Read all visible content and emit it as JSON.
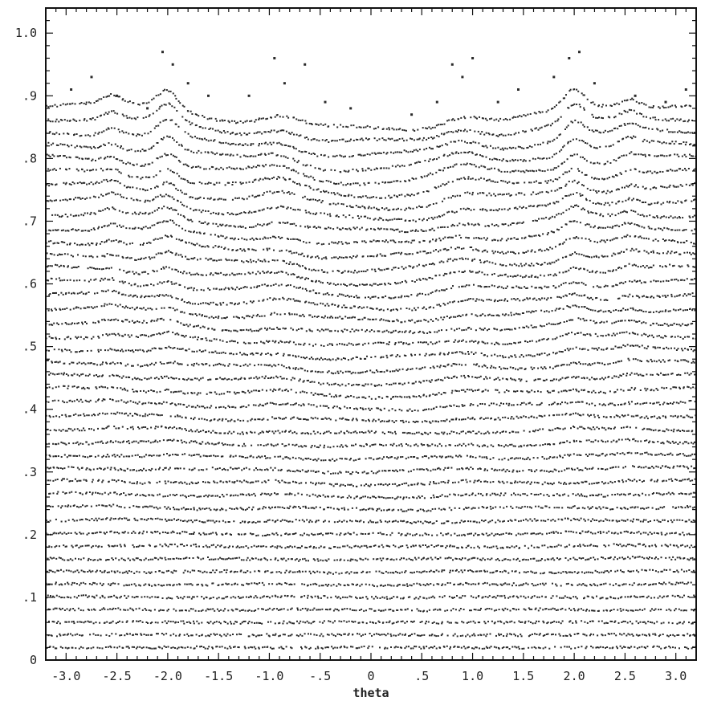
{
  "chart_data": {
    "type": "scatter",
    "title": "",
    "xlabel": "theta",
    "ylabel": "",
    "xlim": [
      -3.2,
      3.2
    ],
    "ylim": [
      0,
      1.04
    ],
    "grid": false,
    "legend": "none",
    "colors": {
      "points": "#2a2a2a",
      "frame": "#111111",
      "background": "#ffffff"
    },
    "x_ticks": [
      {
        "value": -3.0,
        "label": "-3.0"
      },
      {
        "value": -2.5,
        "label": "-2.5"
      },
      {
        "value": -2.0,
        "label": "-2.0"
      },
      {
        "value": -1.5,
        "label": "-1.5"
      },
      {
        "value": -1.0,
        "label": "-1.0"
      },
      {
        "value": -0.5,
        "label": "-.5"
      },
      {
        "value": 0.0,
        "label": "0"
      },
      {
        "value": 0.5,
        "label": ".5"
      },
      {
        "value": 1.0,
        "label": "1.0"
      },
      {
        "value": 1.5,
        "label": "1.5"
      },
      {
        "value": 2.0,
        "label": "2.0"
      },
      {
        "value": 2.5,
        "label": "2.5"
      },
      {
        "value": 3.0,
        "label": "3.0"
      }
    ],
    "y_ticks": [
      {
        "value": 0.0,
        "label": "0"
      },
      {
        "value": 0.1,
        "label": ".1"
      },
      {
        "value": 0.2,
        "label": ".2"
      },
      {
        "value": 0.3,
        "label": ".3"
      },
      {
        "value": 0.4,
        "label": ".4"
      },
      {
        "value": 0.5,
        "label": ".5"
      },
      {
        "value": 0.6,
        "label": ".6"
      },
      {
        "value": 0.7,
        "label": ".7"
      },
      {
        "value": 0.8,
        "label": ".8"
      },
      {
        "value": 0.9,
        "label": ".9"
      },
      {
        "value": 1.0,
        "label": "1.0"
      }
    ],
    "series": [
      {
        "description": "orbit band centers at theta = 0 (each band is a wavy curve sampled densely in theta)",
        "band_centers_y": [
          0.02,
          0.04,
          0.06,
          0.08,
          0.1,
          0.12,
          0.14,
          0.16,
          0.18,
          0.2,
          0.22,
          0.24,
          0.26,
          0.28,
          0.3,
          0.32,
          0.34,
          0.36,
          0.38,
          0.4,
          0.42,
          0.44,
          0.46,
          0.48,
          0.5,
          0.52,
          0.54,
          0.56,
          0.58,
          0.6,
          0.62,
          0.64,
          0.66,
          0.68,
          0.7,
          0.72,
          0.74,
          0.76,
          0.78,
          0.8,
          0.82,
          0.84
        ],
        "samples_per_band": 320
      }
    ],
    "outlier_points": [
      {
        "x": -2.95,
        "y": 0.91
      },
      {
        "x": -2.75,
        "y": 0.93
      },
      {
        "x": -2.5,
        "y": 0.9
      },
      {
        "x": -2.2,
        "y": 0.88
      },
      {
        "x": -2.05,
        "y": 0.97
      },
      {
        "x": -1.95,
        "y": 0.95
      },
      {
        "x": -1.8,
        "y": 0.92
      },
      {
        "x": -1.6,
        "y": 0.9
      },
      {
        "x": -1.2,
        "y": 0.9
      },
      {
        "x": -0.95,
        "y": 0.96
      },
      {
        "x": -0.85,
        "y": 0.92
      },
      {
        "x": -0.65,
        "y": 0.95
      },
      {
        "x": -0.45,
        "y": 0.89
      },
      {
        "x": -0.2,
        "y": 0.88
      },
      {
        "x": 0.4,
        "y": 0.87
      },
      {
        "x": 0.65,
        "y": 0.89
      },
      {
        "x": 0.8,
        "y": 0.95
      },
      {
        "x": 0.9,
        "y": 0.93
      },
      {
        "x": 1.0,
        "y": 0.96
      },
      {
        "x": 1.25,
        "y": 0.89
      },
      {
        "x": 1.45,
        "y": 0.91
      },
      {
        "x": 1.8,
        "y": 0.93
      },
      {
        "x": 1.95,
        "y": 0.96
      },
      {
        "x": 2.05,
        "y": 0.97
      },
      {
        "x": 2.2,
        "y": 0.92
      },
      {
        "x": 2.6,
        "y": 0.9
      },
      {
        "x": 2.9,
        "y": 0.89
      },
      {
        "x": 3.1,
        "y": 0.91
      }
    ]
  }
}
